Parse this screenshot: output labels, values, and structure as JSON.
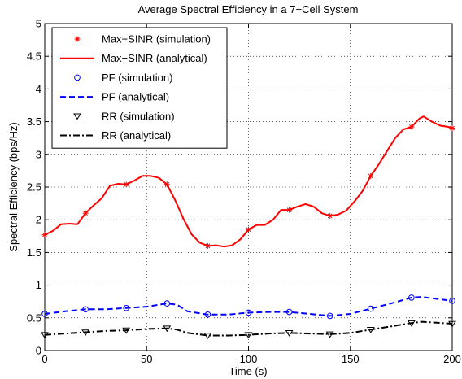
{
  "chart_data": {
    "type": "line",
    "title": "Average Spectral Efficiency in a 7−Cell System",
    "xlabel": "Time (s)",
    "ylabel": "Spectral Efficiency (bps/Hz)",
    "xlim": [
      0,
      200
    ],
    "ylim": [
      0,
      5
    ],
    "xticks": [
      0,
      50,
      100,
      150,
      200
    ],
    "xtick_labels": [
      "0",
      "50",
      "100",
      "150",
      "200"
    ],
    "yticks": [
      0,
      0.5,
      1,
      1.5,
      2,
      2.5,
      3,
      3.5,
      4,
      4.5,
      5
    ],
    "ytick_labels": [
      "0",
      "0.5",
      "1",
      "1.5",
      "2",
      "2.5",
      "3",
      "3.5",
      "4",
      "4.5",
      "5"
    ],
    "grid": true,
    "legend_position": "top-left",
    "series": [
      {
        "name": "Max−SINR (simulation)",
        "kind": "markers",
        "marker": "asterisk",
        "color": "#ff0000",
        "x": [
          0,
          20,
          40,
          60,
          80,
          100,
          120,
          140,
          160,
          180,
          200
        ],
        "y": [
          1.77,
          2.1,
          2.54,
          2.54,
          1.6,
          1.85,
          2.15,
          2.06,
          2.67,
          3.42,
          3.4
        ]
      },
      {
        "name": "Max−SINR (analytical)",
        "kind": "line",
        "style": "solid",
        "color": "#ff0000",
        "x": [
          0,
          4,
          8,
          12,
          16,
          20,
          24,
          28,
          32,
          36,
          40,
          44,
          48,
          52,
          56,
          60,
          64,
          68,
          72,
          76,
          80,
          84,
          88,
          92,
          96,
          100,
          104,
          108,
          112,
          116,
          120,
          124,
          128,
          132,
          136,
          140,
          144,
          148,
          152,
          156,
          160,
          164,
          168,
          172,
          176,
          180,
          184,
          186,
          190,
          194,
          198,
          200
        ],
        "y": [
          1.77,
          1.83,
          1.93,
          1.94,
          1.93,
          2.1,
          2.22,
          2.33,
          2.52,
          2.55,
          2.54,
          2.6,
          2.67,
          2.67,
          2.64,
          2.54,
          2.3,
          2.02,
          1.78,
          1.65,
          1.6,
          1.61,
          1.59,
          1.61,
          1.7,
          1.85,
          1.92,
          1.92,
          2.0,
          2.15,
          2.15,
          2.2,
          2.24,
          2.2,
          2.1,
          2.06,
          2.08,
          2.14,
          2.28,
          2.44,
          2.67,
          2.85,
          3.05,
          3.25,
          3.38,
          3.42,
          3.55,
          3.58,
          3.5,
          3.44,
          3.42,
          3.4
        ]
      },
      {
        "name": "PF (simulation)",
        "kind": "markers",
        "marker": "circle",
        "color": "#0000ff",
        "x": [
          0,
          20,
          40,
          60,
          80,
          100,
          120,
          140,
          160,
          180,
          200
        ],
        "y": [
          0.56,
          0.63,
          0.65,
          0.72,
          0.55,
          0.58,
          0.59,
          0.53,
          0.64,
          0.81,
          0.76
        ]
      },
      {
        "name": "PF (analytical)",
        "kind": "line",
        "style": "dashed",
        "color": "#0000ff",
        "x": [
          0,
          10,
          20,
          30,
          40,
          50,
          60,
          65,
          70,
          80,
          90,
          100,
          110,
          120,
          130,
          140,
          150,
          160,
          170,
          180,
          185,
          190,
          200
        ],
        "y": [
          0.56,
          0.6,
          0.63,
          0.63,
          0.65,
          0.67,
          0.72,
          0.7,
          0.6,
          0.55,
          0.55,
          0.58,
          0.59,
          0.59,
          0.56,
          0.53,
          0.56,
          0.64,
          0.72,
          0.81,
          0.82,
          0.8,
          0.76
        ]
      },
      {
        "name": "RR (simulation)",
        "kind": "markers",
        "marker": "triangle-down",
        "color": "#000000",
        "x": [
          0,
          20,
          40,
          60,
          80,
          100,
          120,
          140,
          160,
          180,
          200
        ],
        "y": [
          0.24,
          0.28,
          0.31,
          0.34,
          0.23,
          0.24,
          0.27,
          0.25,
          0.32,
          0.42,
          0.41
        ]
      },
      {
        "name": "RR (analytical)",
        "kind": "line",
        "style": "dashdot",
        "color": "#000000",
        "x": [
          0,
          10,
          20,
          30,
          40,
          50,
          60,
          65,
          70,
          80,
          90,
          100,
          110,
          120,
          130,
          140,
          150,
          160,
          170,
          180,
          185,
          190,
          200
        ],
        "y": [
          0.24,
          0.26,
          0.28,
          0.3,
          0.31,
          0.33,
          0.34,
          0.32,
          0.27,
          0.23,
          0.23,
          0.24,
          0.26,
          0.27,
          0.26,
          0.25,
          0.27,
          0.32,
          0.37,
          0.42,
          0.44,
          0.43,
          0.41
        ]
      }
    ]
  }
}
